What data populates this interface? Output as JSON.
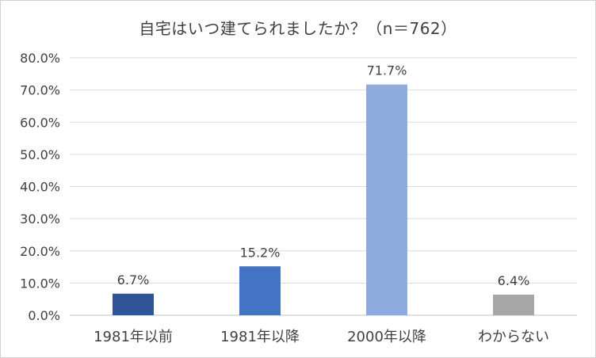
{
  "chart_data": {
    "type": "bar",
    "title": "自宅はいつ建てられましたか？（n＝762）",
    "categories": [
      "1981年以前",
      "1981年以降",
      "2000年以降",
      "わからない"
    ],
    "values": [
      6.7,
      15.2,
      71.7,
      6.4
    ],
    "data_labels": [
      "6.7%",
      "15.2%",
      "71.7%",
      "6.4%"
    ],
    "bar_colors": [
      "#2f5597",
      "#4472c4",
      "#8faadc",
      "#a6a6a6"
    ],
    "ylim": [
      0,
      80
    ],
    "y_ticks": [
      "0.0%",
      "10.0%",
      "20.0%",
      "30.0%",
      "40.0%",
      "50.0%",
      "60.0%",
      "70.0%",
      "80.0%"
    ],
    "grid": true,
    "xlabel": "",
    "ylabel": ""
  }
}
